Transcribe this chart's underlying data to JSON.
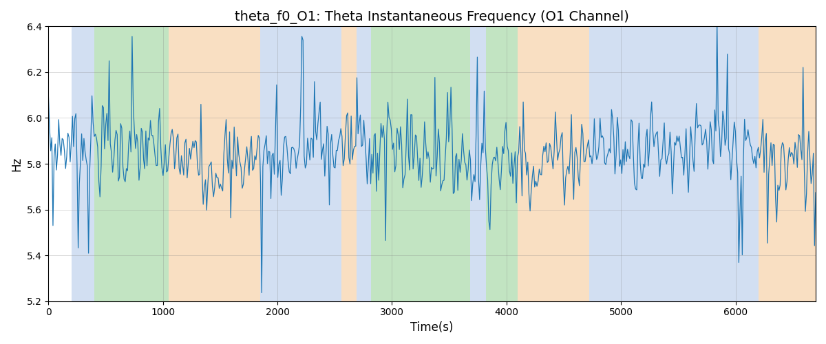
{
  "title": "theta_f0_O1: Theta Instantaneous Frequency (O1 Channel)",
  "xlabel": "Time(s)",
  "ylabel": "Hz",
  "ylim": [
    5.2,
    6.4
  ],
  "xlim": [
    0,
    6700
  ],
  "line_color": "#1f77b4",
  "line_width": 0.9,
  "background_regions": [
    {
      "xstart": 200,
      "xend": 400,
      "color": "#aec6e8",
      "alpha": 0.55
    },
    {
      "xstart": 400,
      "xend": 1050,
      "color": "#90ce90",
      "alpha": 0.55
    },
    {
      "xstart": 1050,
      "xend": 1850,
      "color": "#f5c690",
      "alpha": 0.55
    },
    {
      "xstart": 1850,
      "xend": 2560,
      "color": "#aec6e8",
      "alpha": 0.55
    },
    {
      "xstart": 2560,
      "xend": 2690,
      "color": "#f5c690",
      "alpha": 0.55
    },
    {
      "xstart": 2690,
      "xend": 2820,
      "color": "#aec6e8",
      "alpha": 0.55
    },
    {
      "xstart": 2820,
      "xend": 3680,
      "color": "#90ce90",
      "alpha": 0.55
    },
    {
      "xstart": 3680,
      "xend": 3820,
      "color": "#aec6e8",
      "alpha": 0.55
    },
    {
      "xstart": 3820,
      "xend": 4100,
      "color": "#90ce90",
      "alpha": 0.55
    },
    {
      "xstart": 4100,
      "xend": 4720,
      "color": "#f5c690",
      "alpha": 0.55
    },
    {
      "xstart": 4720,
      "xend": 6200,
      "color": "#aec6e8",
      "alpha": 0.55
    },
    {
      "xstart": 6200,
      "xend": 6700,
      "color": "#f5c690",
      "alpha": 0.55
    }
  ],
  "n_samples": 670,
  "total_time": 6700,
  "seed": 7,
  "base_freq": 5.85,
  "title_fontsize": 14,
  "label_fontsize": 12,
  "figsize": [
    12.0,
    5.0
  ],
  "dpi": 100
}
